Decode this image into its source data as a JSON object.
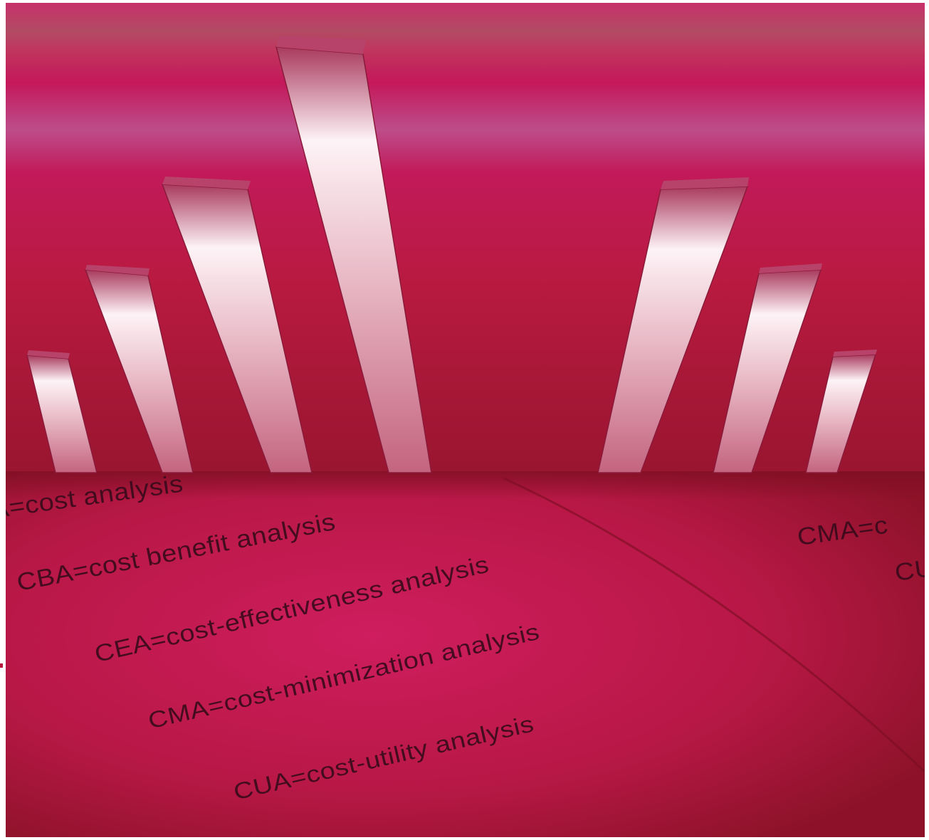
{
  "colors": {
    "wall_top": "#b34a63",
    "wall_mid": "#c71d60",
    "wall_bottom": "#9e1630",
    "floor_light": "#c81b57",
    "floor_dark": "#8c1228",
    "bar_light": "#fbeff2",
    "bar_dark": "#a8365a",
    "text": "#3a0b1c"
  },
  "bars": {
    "left": [
      {
        "value": 1
      },
      {
        "value": 2
      },
      {
        "value": 3
      },
      {
        "value": 4
      }
    ],
    "right": [
      {
        "value": 3
      },
      {
        "value": 2
      },
      {
        "value": 1
      }
    ]
  },
  "floor_text": {
    "line_1": "A=cost analysis",
    "line_2": "CBA=cost benefit analysis",
    "line_3": "CEA=cost-effectiveness analysis",
    "line_4": "CMA=cost-minimization analysis",
    "line_5": "CUA=cost-utility analysis",
    "right_line_1": "CMA=c",
    "right_line_2": "CU"
  }
}
